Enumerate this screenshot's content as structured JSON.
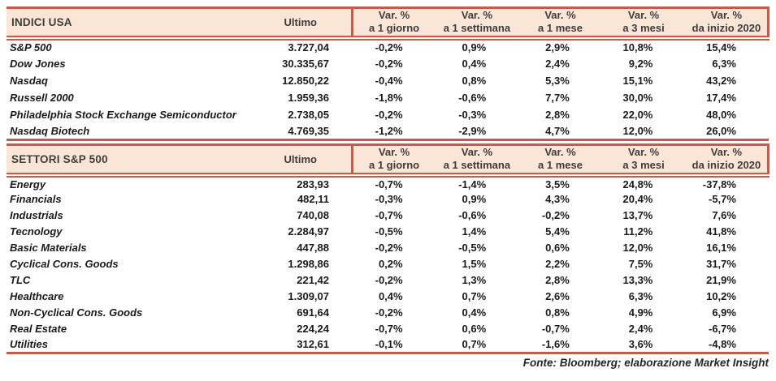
{
  "colors": {
    "accent_line": "#c75b4a",
    "header_bg": "#fbe5d6",
    "text": "#1a1a1a"
  },
  "indici": {
    "title": "INDICI USA",
    "ultimo_label": "Ultimo",
    "var_columns": [
      {
        "line1": "Var. %",
        "line2": "a 1 giorno"
      },
      {
        "line1": "Var. %",
        "line2": "a 1 settimana"
      },
      {
        "line1": "Var. %",
        "line2": "a 1 mese"
      },
      {
        "line1": "Var. %",
        "line2": "a 3 mesi"
      },
      {
        "line1": "Var. %",
        "line2": "da inizio 2020"
      }
    ],
    "rows": [
      {
        "name": "S&P 500",
        "ultimo": "3.727,04",
        "values": [
          "-0,2%",
          "0,9%",
          "2,9%",
          "10,8%",
          "15,4%"
        ]
      },
      {
        "name": "Dow Jones",
        "ultimo": "30.335,67",
        "values": [
          "-0,2%",
          "0,4%",
          "2,4%",
          "9,2%",
          "6,3%"
        ]
      },
      {
        "name": "Nasdaq",
        "ultimo": "12.850,22",
        "values": [
          "-0,4%",
          "0,8%",
          "5,3%",
          "15,1%",
          "43,2%"
        ]
      },
      {
        "name": "Russell 2000",
        "ultimo": "1.959,36",
        "values": [
          "-1,8%",
          "-0,6%",
          "7,7%",
          "30,0%",
          "17,4%"
        ]
      },
      {
        "name": "Philadelphia Stock Exchange Semiconductor",
        "ultimo": "2.738,05",
        "values": [
          "-0,2%",
          "-0,3%",
          "2,8%",
          "22,0%",
          "48,0%"
        ]
      },
      {
        "name": "Nasdaq Biotech",
        "ultimo": "4.769,35",
        "values": [
          "-1,2%",
          "-2,9%",
          "4,7%",
          "12,0%",
          "26,0%"
        ]
      }
    ]
  },
  "settori": {
    "title": "SETTORI S&P 500",
    "ultimo_label": "Ultimo",
    "var_columns": [
      {
        "line1": "Var. %",
        "line2": "a 1 giorno"
      },
      {
        "line1": "Var. %",
        "line2": "a 1 settimana"
      },
      {
        "line1": "Var. %",
        "line2": "a 1 mese"
      },
      {
        "line1": "Var. %",
        "line2": "a 3 mesi"
      },
      {
        "line1": "Var. %",
        "line2": "da inizio 2020"
      }
    ],
    "rows": [
      {
        "name": "Energy",
        "ultimo": "283,93",
        "values": [
          "-0,7%",
          "-1,4%",
          "3,5%",
          "24,8%",
          "-37,8%"
        ]
      },
      {
        "name": "Financials",
        "ultimo": "482,11",
        "values": [
          "-0,3%",
          "0,9%",
          "4,3%",
          "20,4%",
          "-5,7%"
        ]
      },
      {
        "name": "Industrials",
        "ultimo": "740,08",
        "values": [
          "-0,7%",
          "-0,6%",
          "-0,2%",
          "13,7%",
          "7,6%"
        ]
      },
      {
        "name": "Tecnology",
        "ultimo": "2.284,97",
        "values": [
          "-0,5%",
          "1,4%",
          "5,4%",
          "11,2%",
          "41,8%"
        ]
      },
      {
        "name": "Basic Materials",
        "ultimo": "447,88",
        "values": [
          "-0,2%",
          "-0,5%",
          "0,6%",
          "12,0%",
          "16,1%"
        ]
      },
      {
        "name": "Cyclical Cons. Goods",
        "ultimo": "1.298,86",
        "values": [
          "0,2%",
          "1,5%",
          "2,2%",
          "7,5%",
          "31,7%"
        ]
      },
      {
        "name": "TLC",
        "ultimo": "221,42",
        "values": [
          "-0,2%",
          "1,3%",
          "2,8%",
          "13,3%",
          "21,9%"
        ]
      },
      {
        "name": "Healthcare",
        "ultimo": "1.309,07",
        "values": [
          "0,4%",
          "0,7%",
          "2,6%",
          "6,3%",
          "10,2%"
        ]
      },
      {
        "name": "Non-Cyclical Cons. Goods",
        "ultimo": "691,64",
        "values": [
          "-0,2%",
          "0,4%",
          "0,8%",
          "4,9%",
          "6,9%"
        ]
      },
      {
        "name": "Real Estate",
        "ultimo": "224,24",
        "values": [
          "-0,7%",
          "0,6%",
          "-0,7%",
          "2,4%",
          "-6,7%"
        ]
      },
      {
        "name": "Utilities",
        "ultimo": "312,61",
        "values": [
          "-0,1%",
          "0,7%",
          "-1,6%",
          "3,6%",
          "-4,8%"
        ]
      }
    ]
  },
  "footer": "Fonte: Bloomberg; elaborazione Market Insight"
}
